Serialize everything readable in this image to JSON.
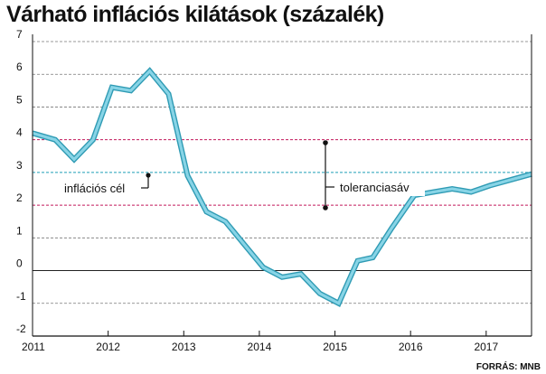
{
  "title": "Várható inflációs kilátások (százalék)",
  "source": "FORRÁS: MNB",
  "colors": {
    "line_fill": "#88d4e6",
    "line_stroke": "#2f9bb4",
    "tolerance_band": "#c2185b",
    "target": "#1e9fb8",
    "grid": "#777777"
  },
  "chart_data": {
    "type": "line",
    "title": "Várható inflációs kilátások (százalék)",
    "xlabel": "",
    "ylabel": "",
    "xlim": [
      2011.0,
      2017.6
    ],
    "ylim": [
      -2,
      7
    ],
    "y_ticks": [
      "7",
      "6",
      "5",
      "4",
      "3",
      "2",
      "1",
      "0",
      "-1",
      "-2"
    ],
    "x_ticks": [
      {
        "label": "2011",
        "x": 2011
      },
      {
        "label": "2012",
        "x": 2012
      },
      {
        "label": "2013",
        "x": 2013
      },
      {
        "label": "2014",
        "x": 2014
      },
      {
        "label": "2015",
        "x": 2015
      },
      {
        "label": "2016",
        "x": 2016
      },
      {
        "label": "2017",
        "x": 2017
      }
    ],
    "grid": true,
    "series": [
      {
        "name": "",
        "x": [
          2011.0,
          2011.3,
          2011.55,
          2011.8,
          2012.05,
          2012.3,
          2012.55,
          2012.8,
          2013.05,
          2013.3,
          2013.55,
          2013.8,
          2014.05,
          2014.3,
          2014.55,
          2014.8,
          2015.05,
          2015.3,
          2015.5,
          2015.75,
          2016.05,
          2016.3,
          2016.55,
          2016.8,
          2017.05,
          2017.6
        ],
        "y": [
          4.2,
          4.0,
          3.4,
          4.0,
          5.6,
          5.5,
          6.1,
          5.4,
          2.9,
          1.8,
          1.5,
          0.8,
          0.1,
          -0.2,
          -0.1,
          -0.7,
          -1.0,
          0.3,
          0.4,
          1.3,
          2.3,
          2.4,
          2.5,
          2.4,
          2.6,
          2.95
        ]
      }
    ],
    "reference_lines": [
      {
        "name": "tolerance-upper",
        "y": 4,
        "style": "dashed"
      },
      {
        "name": "inflation-target",
        "y": 3,
        "style": "dashed"
      },
      {
        "name": "tolerance-lower",
        "y": 2,
        "style": "dashed"
      }
    ],
    "annotations": {
      "target_label": "inflációs cél",
      "band_label": "toleranciasáv"
    }
  }
}
